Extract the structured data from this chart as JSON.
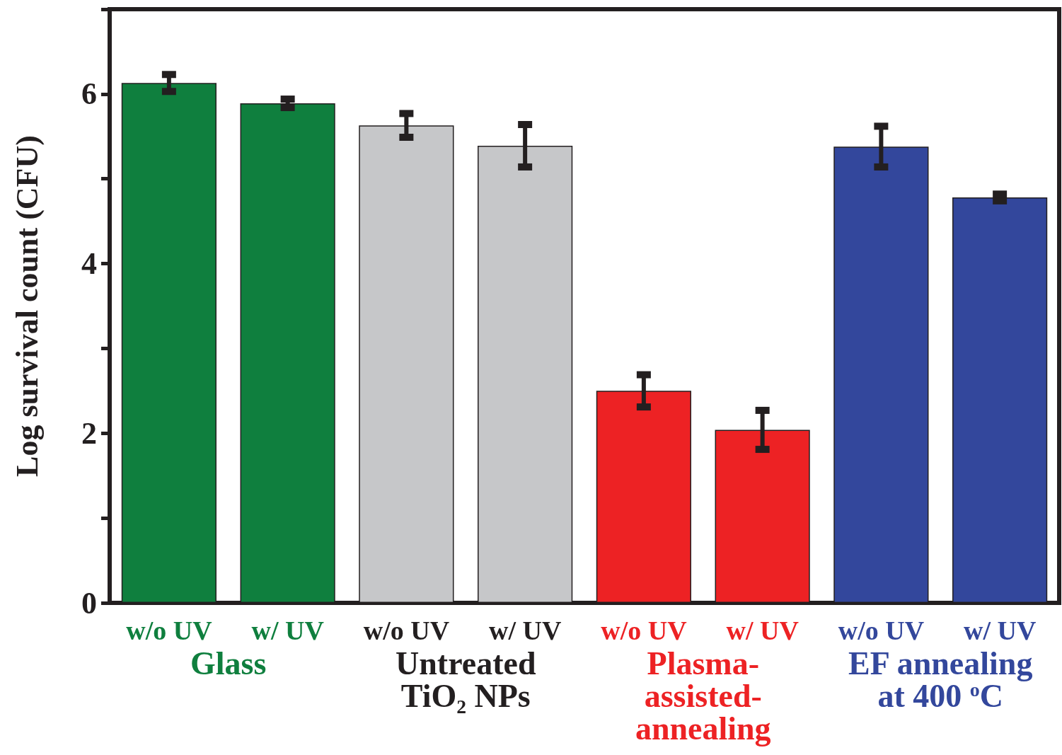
{
  "chart_data": {
    "type": "bar",
    "ylabel": "Log survival count (CFU)",
    "categories": [
      "w/o UV",
      "w/ UV",
      "w/o UV",
      "w/ UV",
      "w/o UV",
      "w/ UV",
      "w/o UV",
      "w/ UV"
    ],
    "values": [
      6.13,
      5.89,
      5.63,
      5.39,
      2.5,
      2.04,
      5.38,
      4.78
    ],
    "errors": [
      0.1,
      0.05,
      0.14,
      0.25,
      0.19,
      0.23,
      0.24,
      0.04
    ],
    "colors": [
      "#0f7f3e",
      "#0f7f3e",
      "#c6c7c9",
      "#c6c7c9",
      "#ed2224",
      "#ed2224",
      "#33479c",
      "#33479c"
    ],
    "ylim": [
      0,
      7
    ],
    "yticks": [
      0,
      {
        "value": 1,
        "label": null
      },
      2,
      {
        "value": 3,
        "label": null
      },
      4,
      {
        "value": 5,
        "label": null
      },
      6,
      {
        "value": 7,
        "label": null
      }
    ],
    "annotations": [
      "Glass",
      "Untreated TiO₂ NPs",
      "Plasma-assisted-annealing",
      "EF annealing at 400 $^{o}$C"
    ],
    "grid": false
  }
}
